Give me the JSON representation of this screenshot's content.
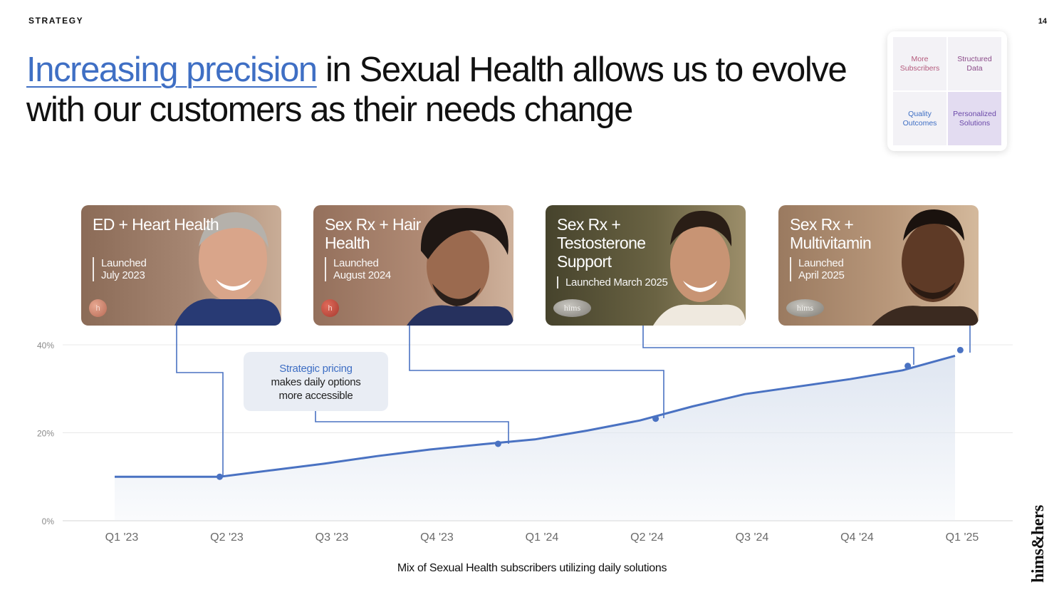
{
  "header": {
    "section": "STRATEGY",
    "page_number": "14",
    "headline_highlight": "Increasing precision",
    "headline_rest": " in Sexual Health allows us to evolve with our customers as their needs change"
  },
  "matrix": {
    "cells": [
      "More Subscribers",
      "Structured Data",
      "Quality Outcomes",
      "Personalized Solutions"
    ]
  },
  "cards": [
    {
      "title": "ED + Heart Health",
      "launched": "Launched",
      "date": "July 2023",
      "pill": "h"
    },
    {
      "title": "Sex Rx + Hair Health",
      "launched": "Launched",
      "date": "August 2024",
      "pill": "h"
    },
    {
      "title": "Sex Rx + Testosterone Support",
      "launched": "Launched March 2025",
      "date": "",
      "pill": "hims"
    },
    {
      "title": "Sex Rx + Multivitamin",
      "launched": "Launched",
      "date": "April 2025",
      "pill": "hims"
    }
  ],
  "callout": {
    "emphasis": "Strategic pricing",
    "line2": "makes daily options",
    "line3": "more accessible"
  },
  "chart_data": {
    "type": "area",
    "title": "",
    "xlabel": "Mix of Sexual Health subscribers utilizing daily solutions",
    "ylabel": "",
    "categories": [
      "Q1 '23",
      "Q2 '23",
      "Q3 '23",
      "Q4 '23",
      "Q1 '24",
      "Q2 '24",
      "Q3 '24",
      "Q4 '24",
      "Q1 '25"
    ],
    "y_ticks": [
      "0%",
      "20%",
      "40%"
    ],
    "ylim": [
      0,
      40
    ],
    "grid": true,
    "color": "#4a72c2",
    "fill_color": "#dfe6f1",
    "series": [
      {
        "name": "",
        "x": [
          0,
          1,
          1.5,
          2,
          2.5,
          3,
          3.5,
          4,
          4.5,
          5,
          5.5,
          6,
          6.5,
          7,
          7.5,
          8
        ],
        "values": [
          10,
          10,
          11.5,
          13,
          14.7,
          16.2,
          17.4,
          18.5,
          20.5,
          22.8,
          26,
          28.8,
          30.5,
          32.2,
          34.2,
          37.5
        ]
      }
    ],
    "markers": [
      {
        "x": 1.0,
        "y": 10
      },
      {
        "x": 3.65,
        "y": 17.5
      },
      {
        "x": 5.15,
        "y": 23.2
      },
      {
        "x": 7.55,
        "y": 35.2
      },
      {
        "x": 8.05,
        "y": 38.8
      }
    ]
  },
  "brand": {
    "logo": "hims&hers"
  }
}
